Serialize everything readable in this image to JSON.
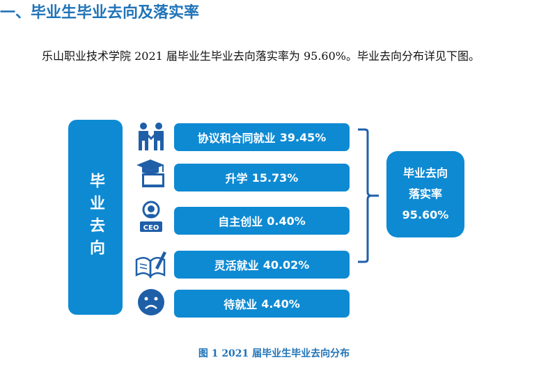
{
  "heading": "一、毕业生毕业去向及落实率",
  "paragraph": "乐山职业技术学院 2021 届毕业生毕业去向落实率为 95.60%。毕业去向分布详见下图。",
  "diagram": {
    "left_label": "毕业去向",
    "items": [
      {
        "label": "协议和合同就业",
        "value": "39.45%",
        "icon": "handshake-icon"
      },
      {
        "label": "升学",
        "value": "15.73%",
        "icon": "graduation-cap-icon"
      },
      {
        "label": "自主创业",
        "value": "0.40%",
        "icon": "ceo-icon"
      },
      {
        "label": "灵活就业",
        "value": "40.02%",
        "icon": "book-pen-icon"
      },
      {
        "label": "待就业",
        "value": "4.40%",
        "icon": "sad-face-icon"
      }
    ],
    "rate_box": {
      "line1": "毕业去向",
      "line2": "落实率",
      "value": "95.60%"
    },
    "ceo_text": "CEO"
  },
  "caption": "图 1    2021 届毕业生毕业去向分布",
  "colors": {
    "accent": "#0e8ad3",
    "heading": "#1f73b8",
    "icon": "#1f5fa8"
  }
}
